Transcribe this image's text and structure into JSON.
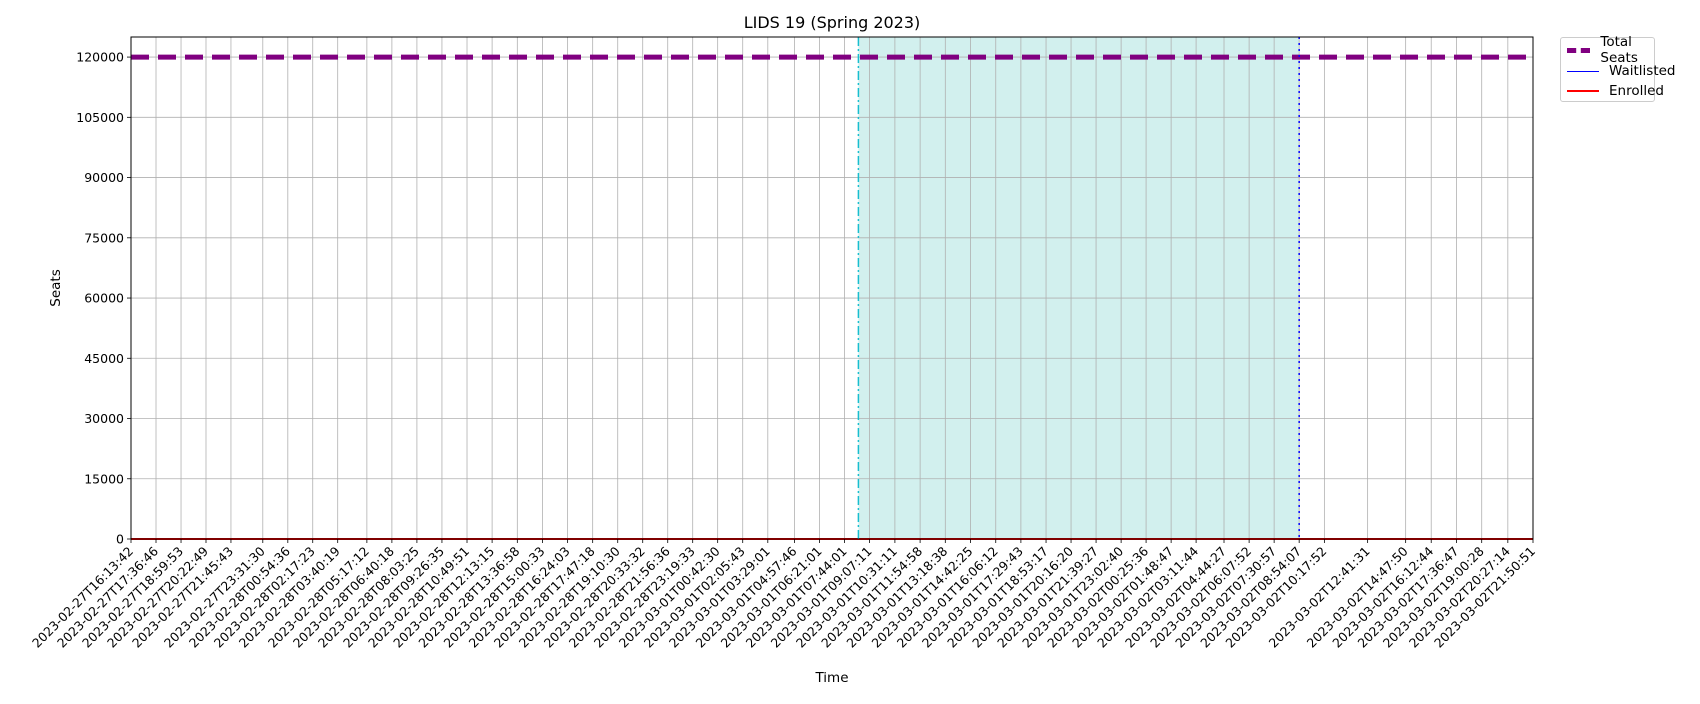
{
  "chart_data": {
    "type": "line",
    "title": "LIDS 19 (Spring 2023)",
    "xlabel": "Time",
    "ylabel": "Seats",
    "ylim": [
      0,
      125000
    ],
    "yticks": [
      0,
      15000,
      30000,
      45000,
      60000,
      75000,
      90000,
      105000,
      120000
    ],
    "grid": true,
    "legend_position": "outside-top-right",
    "x": [
      "2023-02-27T16:13:42",
      "2023-02-27T17:36:46",
      "2023-02-27T18:59:53",
      "2023-02-27T20:22:49",
      "2023-02-27T21:45:43",
      "2023-02-27T23:31:30",
      "2023-02-28T00:54:36",
      "2023-02-28T02:17:23",
      "2023-02-28T03:40:19",
      "2023-02-28T05:17:12",
      "2023-02-28T06:40:18",
      "2023-02-28T08:03:25",
      "2023-02-28T09:26:35",
      "2023-02-28T10:49:51",
      "2023-02-28T12:13:15",
      "2023-02-28T13:36:58",
      "2023-02-28T15:00:33",
      "2023-02-28T16:24:03",
      "2023-02-28T17:47:18",
      "2023-02-28T19:10:30",
      "2023-02-28T20:33:32",
      "2023-02-28T21:56:36",
      "2023-02-28T23:19:33",
      "2023-03-01T00:42:30",
      "2023-03-01T02:05:43",
      "2023-03-01T03:29:01",
      "2023-03-01T04:57:46",
      "2023-03-01T06:21:01",
      "2023-03-01T07:44:01",
      "2023-03-01T09:07:11",
      "2023-03-01T10:31:11",
      "2023-03-01T11:54:58",
      "2023-03-01T13:18:38",
      "2023-03-01T14:42:25",
      "2023-03-01T16:06:12",
      "2023-03-01T17:29:43",
      "2023-03-01T18:53:17",
      "2023-03-01T20:16:20",
      "2023-03-01T21:39:27",
      "2023-03-01T23:02:40",
      "2023-03-02T00:25:36",
      "2023-03-02T01:48:47",
      "2023-03-02T03:11:44",
      "2023-03-02T04:44:27",
      "2023-03-02T06:07:52",
      "2023-03-02T07:30:57",
      "2023-03-02T08:54:07",
      "2023-03-02T10:17:52",
      "2023-03-02T12:41:31",
      "2023-03-02T14:47:50",
      "2023-03-02T16:12:44",
      "2023-03-02T17:36:47",
      "2023-03-02T19:00:28",
      "2023-03-02T20:27:14",
      "2023-03-02T21:50:51"
    ],
    "series": [
      {
        "name": "Total Seats",
        "constant": 120000,
        "color": "#800080",
        "style": "dashed-thick"
      },
      {
        "name": "Waitlisted",
        "constant": 0,
        "color": "#0000ff",
        "style": "solid-thin"
      },
      {
        "name": "Enrolled",
        "constant": 0,
        "color": "#ff0000",
        "style": "solid"
      }
    ],
    "shaded_region": {
      "start": "2023-03-01T08:30:00",
      "end": "2023-03-02T08:54:07",
      "color": "#20b2aa",
      "opacity": 0.2
    },
    "vlines": [
      {
        "at": "2023-03-01T08:30:00",
        "color": "#17becf",
        "style": "dashdot"
      },
      {
        "at": "2023-03-02T08:54:07",
        "color": "#0000ff",
        "style": "dotted"
      }
    ]
  }
}
